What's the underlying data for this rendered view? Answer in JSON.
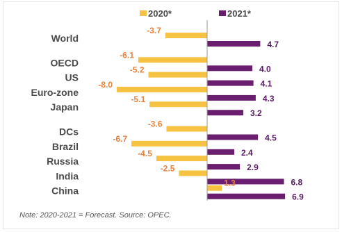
{
  "chart_data": {
    "type": "bar",
    "orientation": "horizontal",
    "categories": [
      "World",
      "OECD",
      "US",
      "Euro-zone",
      "Japan",
      "DCs",
      "Brazil",
      "Russia",
      "India",
      "China"
    ],
    "series": [
      {
        "name": "2020*",
        "color": "#f5c242",
        "label_color": "#e8823a",
        "values": [
          -3.7,
          -6.1,
          -5.2,
          -8.0,
          -5.1,
          -3.6,
          -6.7,
          -4.5,
          -2.5,
          1.3
        ]
      },
      {
        "name": "2021*",
        "color": "#6b1d70",
        "label_color": "#5a1a66",
        "values": [
          4.7,
          4.0,
          4.1,
          4.3,
          3.2,
          4.5,
          2.4,
          2.9,
          6.8,
          6.9
        ]
      }
    ],
    "groups": [
      [
        "World"
      ],
      [
        "OECD",
        "US",
        "Euro-zone",
        "Japan"
      ],
      [
        "DCs",
        "Brazil",
        "Russia",
        "India",
        "China"
      ]
    ],
    "xlim": [
      -8.0,
      7.0
    ],
    "legend_position": "top",
    "grid": false,
    "note": "Note: 2020-2021 = Forecast. Source: OPEC."
  }
}
